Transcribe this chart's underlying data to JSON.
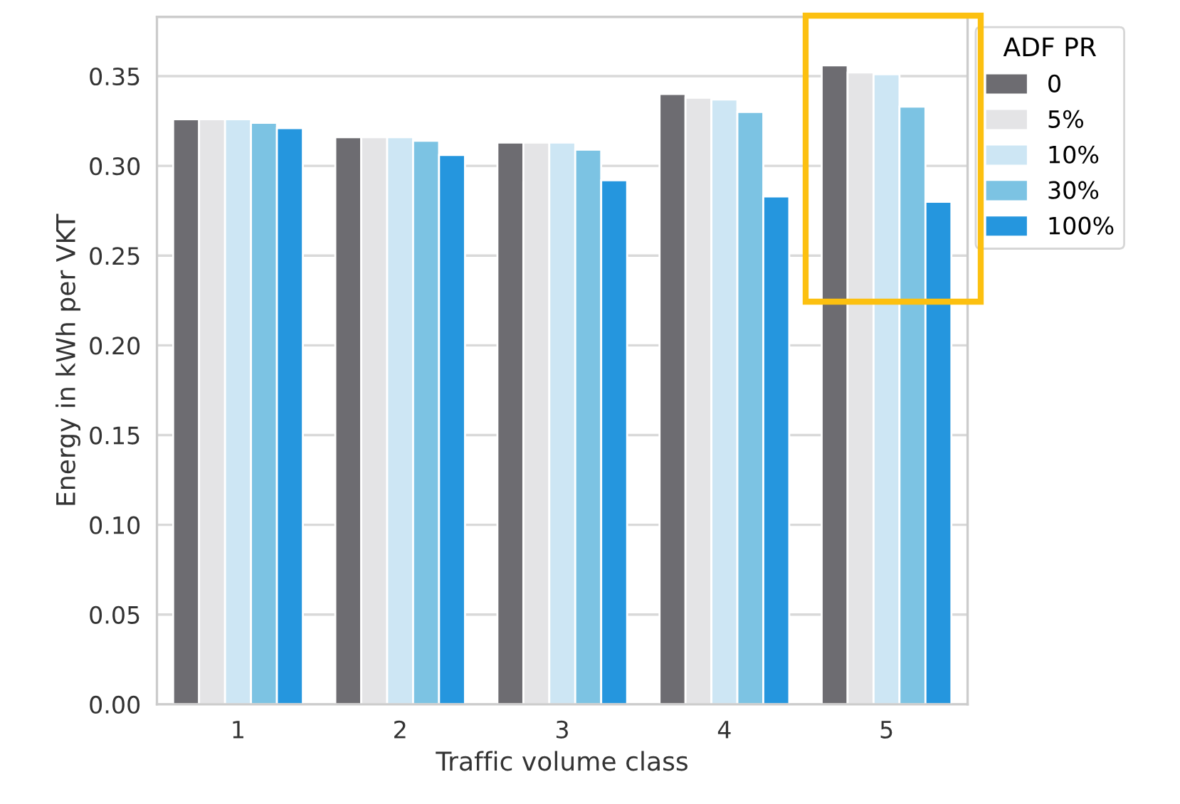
{
  "chart_data": {
    "type": "bar",
    "xlabel": "Traffic volume class",
    "ylabel": "Energy in kWh per VKT",
    "legend_title": "ADF PR",
    "categories": [
      "1",
      "2",
      "3",
      "4",
      "5"
    ],
    "series": [
      {
        "name": "0",
        "color": "#6d6c71",
        "values": [
          0.326,
          0.316,
          0.313,
          0.34,
          0.356
        ]
      },
      {
        "name": "5%",
        "color": "#e4e4e6",
        "values": [
          0.326,
          0.316,
          0.313,
          0.338,
          0.352
        ]
      },
      {
        "name": "10%",
        "color": "#cde6f4",
        "values": [
          0.326,
          0.316,
          0.313,
          0.337,
          0.351
        ]
      },
      {
        "name": "30%",
        "color": "#7cc3e3",
        "values": [
          0.324,
          0.314,
          0.309,
          0.33,
          0.333
        ]
      },
      {
        "name": "100%",
        "color": "#2596de",
        "values": [
          0.321,
          0.306,
          0.292,
          0.283,
          0.28
        ]
      }
    ],
    "ylim": [
      0,
      0.383
    ],
    "yticks": [
      {
        "value": 0,
        "label": "0.00"
      },
      {
        "value": 0.05,
        "label": "0.05"
      },
      {
        "value": 0.1,
        "label": "0.10"
      },
      {
        "value": 0.15,
        "label": "0.15"
      },
      {
        "value": 0.2,
        "label": "0.20"
      },
      {
        "value": 0.25,
        "label": "0.25"
      },
      {
        "value": 0.3,
        "label": "0.30"
      },
      {
        "value": 0.35,
        "label": "0.35"
      }
    ],
    "grid": "y",
    "legend": "top right"
  }
}
